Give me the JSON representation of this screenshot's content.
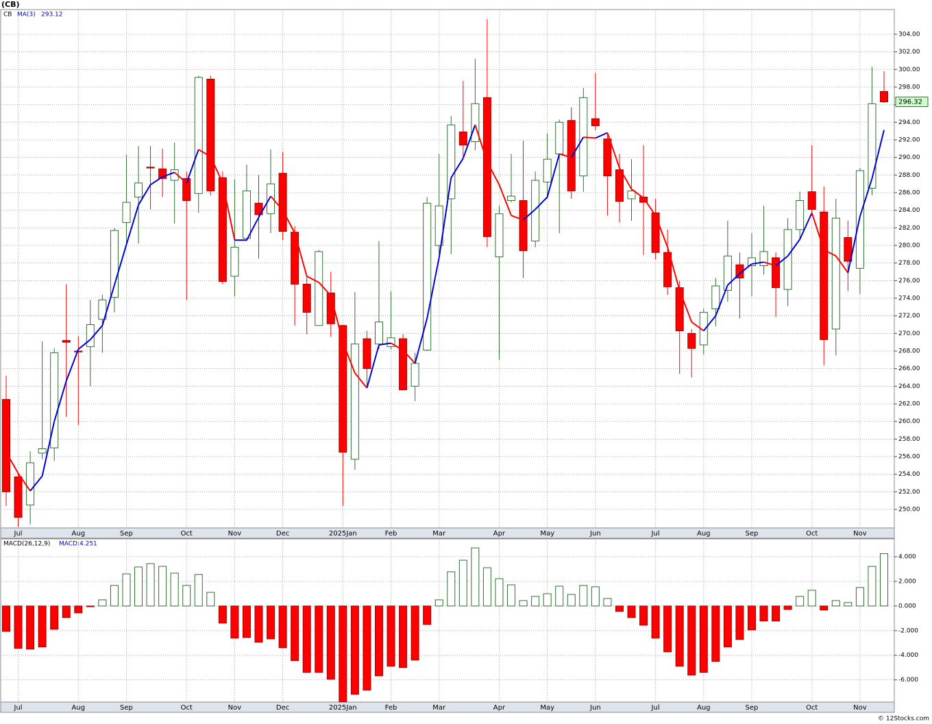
{
  "chart_data": [
    {
      "type": "candlestick",
      "title": "(CB)",
      "symbol": "CB",
      "open": [
        262.5,
        253.7,
        250.5,
        256.4,
        257,
        269.2,
        268,
        268.5,
        271.6,
        274.1,
        282.6,
        285.5,
        288.9,
        288.7,
        287.4,
        287.6,
        285.9,
        298.9,
        287.7,
        276.5,
        280.8,
        284.8,
        283.6,
        288.2,
        281.5,
        275.6,
        270.9,
        274.6,
        270.9,
        255.7,
        269.4,
        268.8,
        268.5,
        269.4,
        264,
        268.1,
        280,
        285.3,
        292.9,
        291.8,
        296.8,
        278.7,
        285.1,
        285.1,
        280.5,
        287.2,
        290.4,
        294.2,
        287.9,
        294.4,
        292.1,
        288.6,
        285.3,
        285.5,
        283.7,
        279.2,
        275.2,
        270,
        268.7,
        272.8,
        274.9,
        277.8,
        277.7,
        277.7,
        278.6,
        275,
        281.8,
        286.1,
        283.8,
        270.5,
        280.9,
        277.4,
        286.5,
        297.5
      ],
      "high": [
        265.2,
        254.1,
        256.6,
        269.1,
        268.3,
        275.6,
        269.7,
        273.8,
        274.4,
        282,
        290.3,
        291.3,
        291.3,
        291,
        291.7,
        288.4,
        299.3,
        299.3,
        288.4,
        287.5,
        289.2,
        288,
        290.9,
        290.6,
        282.2,
        276.7,
        279.5,
        277,
        271,
        274.7,
        270.3,
        280.5,
        274.8,
        269.9,
        267.8,
        285.5,
        290.4,
        294.7,
        298.7,
        301.2,
        305.7,
        284.5,
        290.4,
        291.9,
        288.4,
        292.7,
        294.3,
        295.7,
        297.9,
        299.6,
        292.7,
        290.4,
        289.8,
        291.4,
        285.3,
        281.8,
        276,
        270.5,
        272.8,
        276.3,
        282.8,
        279.2,
        281.4,
        284.5,
        279.2,
        283.1,
        286.1,
        291.4,
        286.7,
        285.3,
        282.8,
        288.8,
        300.3,
        299.8
      ],
      "low": [
        250.4,
        248,
        248.3,
        255.7,
        255.5,
        260.5,
        259.6,
        264,
        267.8,
        272.4,
        280.2,
        280.2,
        284.1,
        285.5,
        282.5,
        273.8,
        283.7,
        285.7,
        275.6,
        274.2,
        280.5,
        278.5,
        281.4,
        280.6,
        270.9,
        269.9,
        270.9,
        269.6,
        250.4,
        254.5,
        264,
        268.2,
        268.2,
        263.5,
        262.3,
        268,
        279,
        279,
        290.1,
        290.8,
        279.8,
        267,
        284.9,
        276.3,
        279.8,
        285.3,
        281.4,
        285.3,
        286.1,
        293.1,
        283.4,
        282.6,
        282.8,
        278.9,
        278.4,
        274.4,
        265.4,
        265,
        267.6,
        270.8,
        273.6,
        271.7,
        274.2,
        276.7,
        271.9,
        273.1,
        280.6,
        283.4,
        266.4,
        267.5,
        274.8,
        274.5,
        285.7,
        296.2
      ],
      "close": [
        252,
        249.1,
        255.3,
        256.9,
        267.8,
        269,
        267.9,
        271,
        273.8,
        281.7,
        284.9,
        287.1,
        288.8,
        287.6,
        288.6,
        285.1,
        299.1,
        286.2,
        275.9,
        279.8,
        286.2,
        283.5,
        287,
        281.6,
        275.6,
        272.4,
        279.3,
        271.1,
        256.5,
        268.8,
        266,
        271.3,
        269.5,
        263.6,
        266.6,
        284.8,
        284.5,
        293.7,
        291.4,
        296.1,
        281,
        283.6,
        285.6,
        279.4,
        287.4,
        289.8,
        294,
        286.2,
        296.8,
        293.6,
        287.9,
        285,
        286.2,
        284.9,
        279.2,
        275.3,
        270.3,
        268.3,
        272.4,
        275.4,
        278.8,
        276.3,
        278.6,
        279.3,
        275.2,
        281.8,
        285.1,
        284.1,
        269.3,
        283.1,
        278.2,
        288.5,
        296.1,
        296.32
      ],
      "close_label": "296.32",
      "up_color": "#2f6f2f",
      "down_color": "#ff0000",
      "ma": {
        "name": "MA(3)",
        "value_label": "293.12",
        "up_color": "#0000dd",
        "down_color": "#ff0000",
        "values": [
          256.5,
          254.1,
          252.1,
          253.8,
          260,
          264.6,
          268.2,
          269.3,
          270.9,
          275.5,
          280.1,
          284.6,
          286.9,
          287.8,
          288.3,
          287.1,
          290.9,
          290.1,
          287.1,
          280.6,
          280.6,
          283.2,
          285.6,
          284,
          281.4,
          276.5,
          275.8,
          274.3,
          269,
          265.5,
          263.8,
          268.7,
          268.9,
          268.1,
          266.6,
          271.7,
          278.6,
          287.7,
          289.9,
          293.7,
          289.5,
          286.9,
          283.4,
          282.9,
          284.1,
          285.5,
          290.4,
          290,
          292.3,
          292.2,
          292.8,
          288.8,
          286.4,
          285.4,
          283.4,
          279.8,
          274.9,
          271.3,
          270.3,
          272,
          275.5,
          276.8,
          277.9,
          278.1,
          277.7,
          278.8,
          280.7,
          283.7,
          279.5,
          278.8,
          276.9,
          283.3,
          287.6,
          293.12
        ]
      },
      "ylim": [
        247.9,
        306.8
      ],
      "yticks": [
        {
          "value": 250,
          "label": "250.00"
        },
        {
          "value": 252,
          "label": "252.00"
        },
        {
          "value": 254,
          "label": "254.00"
        },
        {
          "value": 256,
          "label": "256.00"
        },
        {
          "value": 258,
          "label": "258.00"
        },
        {
          "value": 260,
          "label": "260.00"
        },
        {
          "value": 262,
          "label": "262.00"
        },
        {
          "value": 264,
          "label": "264.00"
        },
        {
          "value": 266,
          "label": "266.00"
        },
        {
          "value": 268,
          "label": "268.00"
        },
        {
          "value": 270,
          "label": "270.00"
        },
        {
          "value": 272,
          "label": "272.00"
        },
        {
          "value": 274,
          "label": "274.00"
        },
        {
          "value": 276,
          "label": "276.00"
        },
        {
          "value": 278,
          "label": "278.00"
        },
        {
          "value": 280,
          "label": "280.00"
        },
        {
          "value": 282,
          "label": "282.00"
        },
        {
          "value": 284,
          "label": "284.00"
        },
        {
          "value": 286,
          "label": "286.00"
        },
        {
          "value": 288,
          "label": "288.00"
        },
        {
          "value": 290,
          "label": "290.00"
        },
        {
          "value": 292,
          "label": "292.00"
        },
        {
          "value": 294,
          "label": "294.00"
        },
        {
          "value": 296,
          "label": "296.00"
        },
        {
          "value": 298,
          "label": "298.00"
        },
        {
          "value": 300,
          "label": "300.00"
        },
        {
          "value": 302,
          "label": "302.00"
        },
        {
          "value": 304,
          "label": "304.00"
        }
      ],
      "xticks": [
        {
          "value": 1,
          "label": "Jul"
        },
        {
          "value": 6,
          "label": "Aug"
        },
        {
          "value": 10,
          "label": "Sep"
        },
        {
          "value": 15,
          "label": "Oct"
        },
        {
          "value": 19,
          "label": "Nov"
        },
        {
          "value": 23,
          "label": "Dec"
        },
        {
          "value": 28,
          "label": "2025Jan"
        },
        {
          "value": 32,
          "label": "Feb"
        },
        {
          "value": 36,
          "label": "Mar"
        },
        {
          "value": 41,
          "label": "Apr"
        },
        {
          "value": 45,
          "label": "May"
        },
        {
          "value": 49,
          "label": "Jun"
        },
        {
          "value": 54,
          "label": "Jul"
        },
        {
          "value": 58,
          "label": "Aug"
        },
        {
          "value": 62,
          "label": "Sep"
        },
        {
          "value": 67,
          "label": "Oct"
        },
        {
          "value": 71,
          "label": "Nov"
        }
      ],
      "grid": true
    },
    {
      "type": "bar",
      "title": "MACD(26,12,9)",
      "value_label": "MACD:4.251",
      "values": [
        -2.06,
        -3.44,
        -3.5,
        -3.33,
        -1.89,
        -0.94,
        -0.56,
        -0.06,
        0.5,
        1.67,
        2.61,
        3.17,
        3.44,
        3.22,
        2.67,
        1.67,
        2.56,
        1.11,
        -1.39,
        -2.61,
        -2.56,
        -2.94,
        -2.67,
        -3.39,
        -4.44,
        -5.39,
        -5.39,
        -5.94,
        -7.78,
        -7.17,
        -6.83,
        -5.67,
        -4.89,
        -5,
        -4.39,
        -1.5,
        0.5,
        2.78,
        3.72,
        4.72,
        3.11,
        2.22,
        1.72,
        0.44,
        0.78,
        1,
        1.61,
        0.94,
        1.67,
        1.56,
        0.61,
        -0.44,
        -0.94,
        -1.56,
        -2.61,
        -3.72,
        -4.89,
        -5.61,
        -5.39,
        -4.5,
        -3.33,
        -2.72,
        -1.94,
        -1.22,
        -1.22,
        -0.28,
        0.78,
        1.28,
        -0.33,
        0.44,
        0.28,
        1.5,
        3.22,
        4.251
      ],
      "pos_color": "#2f6f2f",
      "neg_color": "#ff0000",
      "ylim": [
        -7.8,
        5.45
      ],
      "yticks": [
        {
          "value": -6,
          "label": "-6.000"
        },
        {
          "value": -4,
          "label": "-4.000"
        },
        {
          "value": -2,
          "label": "-2.000"
        },
        {
          "value": 0,
          "label": "0.000"
        },
        {
          "value": 2,
          "label": "2.000"
        },
        {
          "value": 4,
          "label": "4.000"
        }
      ],
      "xticks": [
        {
          "value": 1,
          "label": "Jul"
        },
        {
          "value": 6,
          "label": "Aug"
        },
        {
          "value": 10,
          "label": "Sep"
        },
        {
          "value": 15,
          "label": "Oct"
        },
        {
          "value": 19,
          "label": "Nov"
        },
        {
          "value": 23,
          "label": "Dec"
        },
        {
          "value": 28,
          "label": "2025Jan"
        },
        {
          "value": 32,
          "label": "Feb"
        },
        {
          "value": 36,
          "label": "Mar"
        },
        {
          "value": 41,
          "label": "Apr"
        },
        {
          "value": 45,
          "label": "May"
        },
        {
          "value": 49,
          "label": "Jun"
        },
        {
          "value": 54,
          "label": "Jul"
        },
        {
          "value": 58,
          "label": "Aug"
        },
        {
          "value": 62,
          "label": "Sep"
        },
        {
          "value": 67,
          "label": "Oct"
        },
        {
          "value": 71,
          "label": "Nov"
        }
      ],
      "grid": true
    }
  ],
  "footer": "© 12Stocks.com"
}
